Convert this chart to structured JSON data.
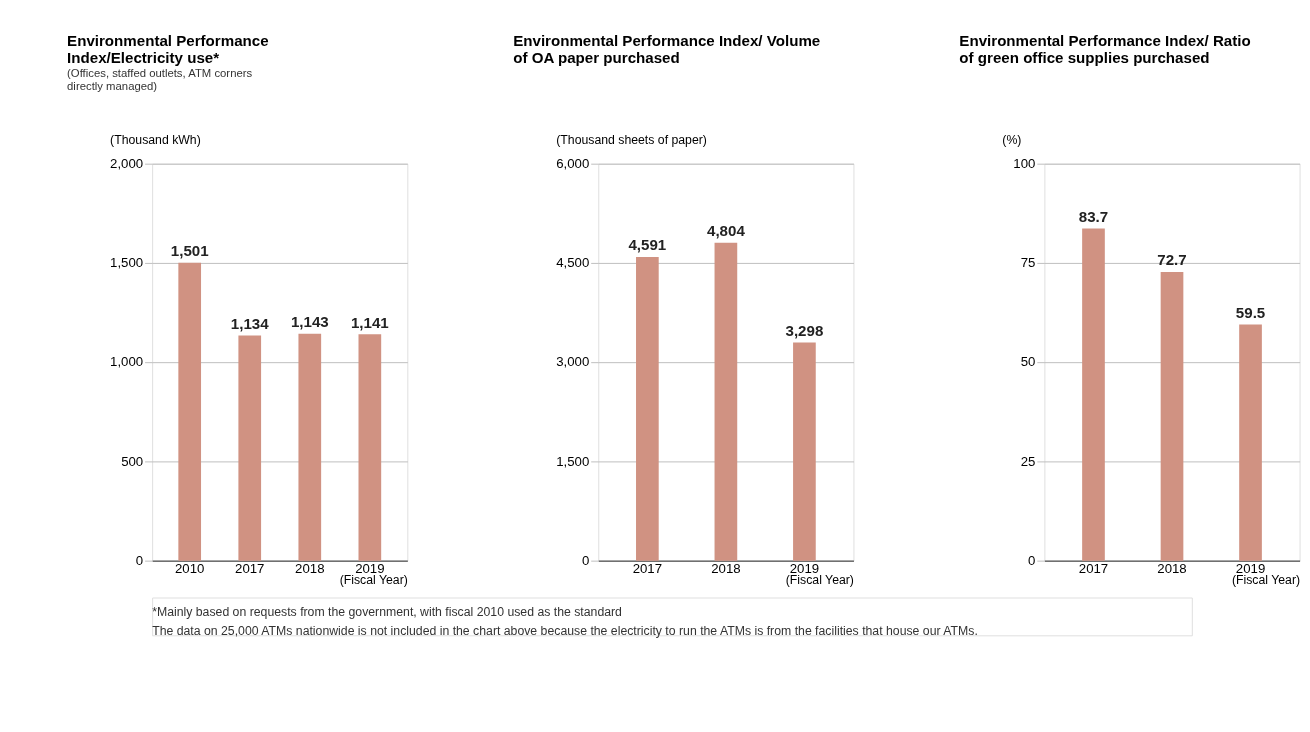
{
  "chart_data": [
    {
      "type": "bar",
      "title": "Environmental Performance Index/Electricity use*",
      "subtitle": "(Offices, staffed outlets, ATM corners directly managed)",
      "ylabel": "(Thousand kWh)",
      "xlabel": "(Fiscal Year)",
      "categories": [
        "2010",
        "2017",
        "2018",
        "2019"
      ],
      "values": [
        1501,
        1134,
        1143,
        1141
      ],
      "value_labels": [
        "1,501",
        "1,134",
        "1,143",
        "1,141"
      ],
      "color": "#d09282",
      "ylim": [
        0,
        2000
      ],
      "yticks": [
        0,
        500,
        {
          "value": 1000,
          "label": "1,000"
        },
        {
          "value": 1500,
          "label": "1,500"
        },
        {
          "value": 2000,
          "label": "2,000"
        }
      ],
      "grid": "y",
      "annotations": [
        "*Mainly based on requests from the government, with fiscal 2010 used as the standard",
        "The data on 25,000 ATMs nationwide is not included in the chart above because the electricity to run the ATMs is from the facilities that house our ATMs."
      ]
    },
    {
      "type": "bar",
      "title": "Environmental Performance Index/ Volume of OA paper purchased",
      "ylabel": "(Thousand sheets of paper)",
      "xlabel": "(Fiscal Year)",
      "categories": [
        "2017",
        "2018",
        "2019"
      ],
      "values": [
        4591,
        4804,
        3298
      ],
      "value_labels": [
        "4,591",
        "4,804",
        "3,298"
      ],
      "color": "#d09282",
      "ylim": [
        0,
        6000
      ],
      "yticks": [
        0,
        {
          "value": 1500,
          "label": "1,500"
        },
        {
          "value": 3000,
          "label": "3,000"
        },
        {
          "value": 4500,
          "label": "4,500"
        },
        {
          "value": 6000,
          "label": "6,000"
        }
      ],
      "grid": "y"
    },
    {
      "type": "bar",
      "title": "Environmental Performance Index/ Ratio of green office supplies purchased",
      "ylabel": "(%)",
      "xlabel": "(Fiscal Year)",
      "categories": [
        "2017",
        "2018",
        "2019"
      ],
      "values": [
        83.7,
        72.7,
        59.5
      ],
      "value_labels": [
        "83.7",
        "72.7",
        "59.5"
      ],
      "color": "#d09282",
      "ylim": [
        0,
        100
      ],
      "yticks": [
        0,
        25,
        50,
        75,
        100
      ],
      "grid": "y"
    }
  ]
}
